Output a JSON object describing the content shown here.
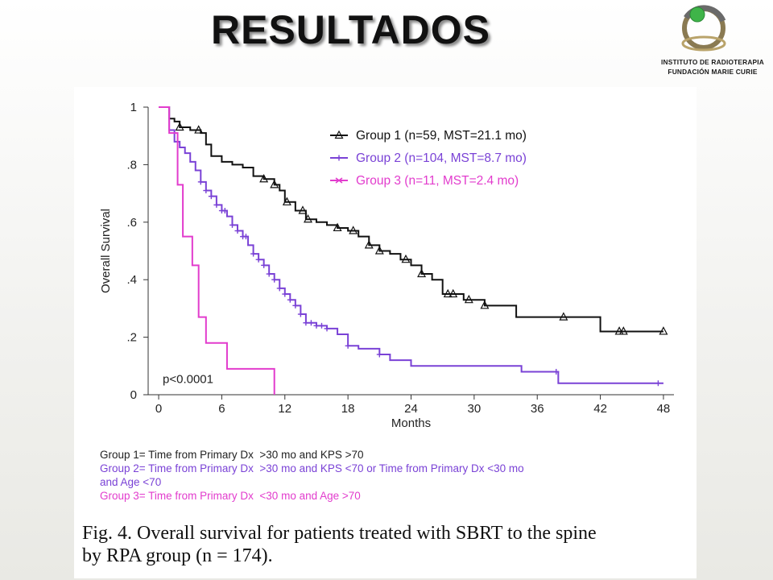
{
  "slide": {
    "title": "RESULTADOS"
  },
  "logo": {
    "line1": "INSTITUTO DE RADIOTERAPIA",
    "line2": "FUNDACIÓN MARIE CURIE"
  },
  "chart_data": {
    "type": "line",
    "step": true,
    "xlabel": "Months",
    "ylabel": "Overall Survival",
    "xlim": [
      -1,
      49
    ],
    "ylim": [
      0,
      1
    ],
    "xticks": [
      0,
      6,
      12,
      18,
      24,
      30,
      36,
      42,
      48
    ],
    "yticks": [
      0,
      0.2,
      0.4,
      0.6,
      0.8,
      1
    ],
    "ytick_labels": [
      "0",
      ".2",
      ".4",
      ".6",
      ".8",
      "1"
    ],
    "legend_position": "top-right",
    "annotation": "p<0.0001",
    "series": [
      {
        "name": "Group 1 (n=59, MST=21.1 mo)",
        "color": "#111111",
        "marker": "triangle",
        "x": [
          0,
          1,
          1.5,
          2,
          3,
          4,
          4.5,
          5,
          6,
          7,
          8,
          9,
          10,
          11,
          11.5,
          12,
          13,
          14,
          15,
          16,
          17,
          18,
          19,
          20,
          21,
          22,
          23,
          24,
          25,
          26,
          27,
          29,
          31,
          34,
          38,
          42,
          48
        ],
        "y": [
          1,
          0.96,
          0.95,
          0.93,
          0.92,
          0.91,
          0.87,
          0.83,
          0.81,
          0.8,
          0.79,
          0.76,
          0.75,
          0.73,
          0.71,
          0.67,
          0.64,
          0.61,
          0.6,
          0.59,
          0.58,
          0.57,
          0.55,
          0.52,
          0.5,
          0.49,
          0.47,
          0.45,
          0.42,
          0.4,
          0.35,
          0.33,
          0.31,
          0.27,
          0.27,
          0.22,
          0.22
        ],
        "censored_x": [
          2,
          3.8,
          10,
          11,
          12.2,
          13.7,
          14.2,
          17,
          18.5,
          20,
          21,
          23.5,
          25,
          27.5,
          28,
          29.5,
          31,
          38.5,
          43.8,
          44.2,
          48
        ]
      },
      {
        "name": "Group 2 (n=104, MST=8.7 mo)",
        "color": "#7a42d6",
        "marker": "plus",
        "x": [
          0,
          1,
          1.5,
          2,
          2.5,
          3,
          3.5,
          4,
          4.5,
          5,
          5.5,
          6,
          6.5,
          7,
          7.5,
          8,
          8.5,
          9,
          9.5,
          10,
          10.5,
          11,
          11.5,
          12,
          12.5,
          13,
          13.5,
          14,
          15,
          16,
          17,
          18,
          19,
          20,
          21,
          22,
          24,
          27,
          29,
          34.5,
          38,
          48
        ],
        "y": [
          1,
          0.92,
          0.88,
          0.86,
          0.84,
          0.81,
          0.78,
          0.74,
          0.71,
          0.69,
          0.66,
          0.64,
          0.62,
          0.59,
          0.57,
          0.55,
          0.52,
          0.49,
          0.47,
          0.45,
          0.42,
          0.4,
          0.37,
          0.35,
          0.33,
          0.31,
          0.28,
          0.25,
          0.24,
          0.23,
          0.21,
          0.17,
          0.16,
          0.16,
          0.14,
          0.12,
          0.1,
          0.1,
          0.1,
          0.08,
          0.04,
          0.04
        ],
        "censored_x": [
          4,
          4.5,
          5,
          5.5,
          6,
          6.3,
          7,
          7.5,
          8,
          8.3,
          9,
          9.5,
          10,
          10.5,
          11,
          11.5,
          12,
          12.5,
          13,
          13.5,
          14,
          14.5,
          15,
          15.5,
          16,
          18,
          21,
          37.8,
          47.5
        ]
      },
      {
        "name": "Group 3 (n=11, MST=2.4 mo)",
        "color": "#e23ccd",
        "marker": "x",
        "x": [
          0,
          1,
          1.8,
          2.3,
          3.2,
          3.8,
          4.5,
          6.5,
          11
        ],
        "y": [
          1,
          0.91,
          0.73,
          0.55,
          0.45,
          0.27,
          0.18,
          0.09,
          0
        ],
        "censored_x": []
      }
    ]
  },
  "notes": {
    "group1_prefix": "Group 1= Time from Primary Dx  >30 mo and KPS >70",
    "group2_line1": "Group 2= Time from Primary Dx  >30 mo and KPS <70 or Time from Primary Dx <30 mo",
    "group2_line2": "and Age <70",
    "group3": "Group 3= Time from Primary Dx  <30 mo and Age >70"
  },
  "caption": {
    "fig_label": "Fig. 4.",
    "line1_rest": "Overall survival for patients treated with SBRT to the spine",
    "line2": "by RPA group (n = 174)."
  }
}
